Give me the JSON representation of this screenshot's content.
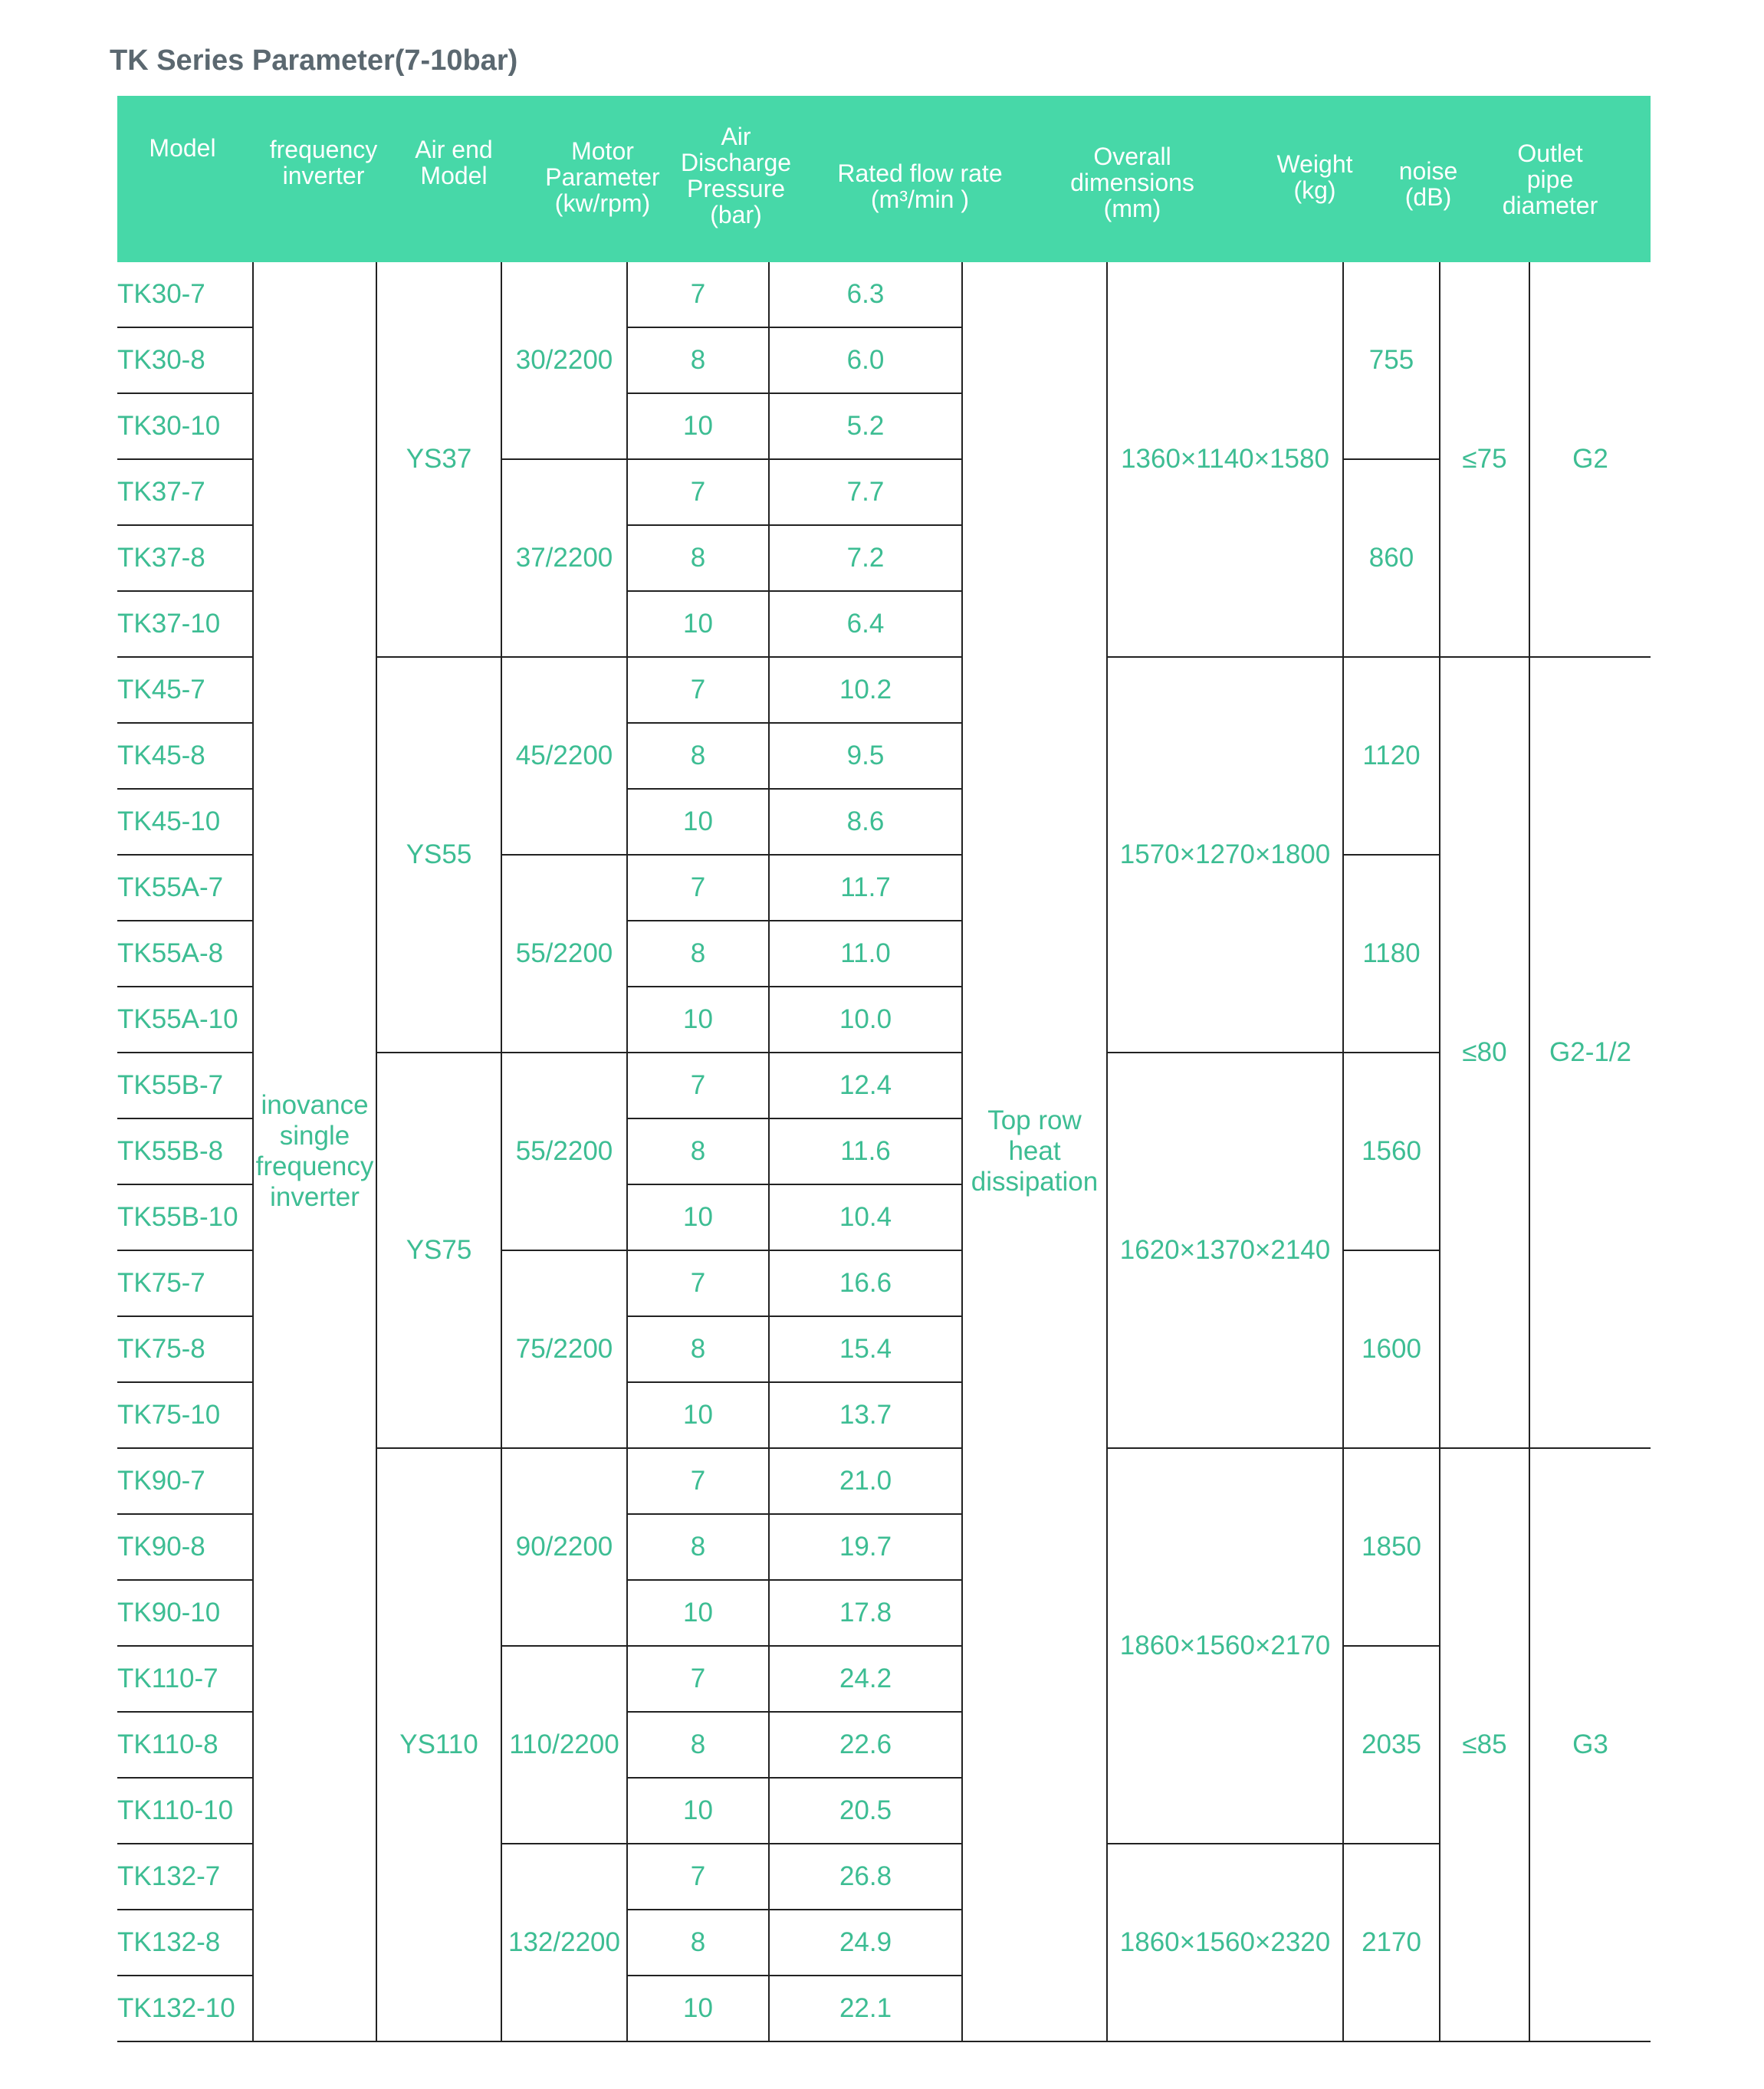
{
  "title": "TK Series Parameter(7-10bar)",
  "colors": {
    "header_bg": "#47d8a8",
    "cell_text": "#3dbd93",
    "title_text": "#5b6870"
  },
  "headers": [
    "Model",
    "frequency\ninverter",
    "Air end\nModel",
    "Motor\nParameter\n(kw/rpm)",
    "Air\nDischarge\nPressure\n(bar)",
    "Rated flow rate\n(m³/min )",
    "Overall\ndimensions\n(mm)",
    "Weight\n(kg)",
    "noise\n(dB)",
    "Outlet\npipe\ndiameter"
  ],
  "rows": [
    {
      "model": "TK30-7",
      "pressure": "7",
      "flow": "6.3"
    },
    {
      "model": "TK30-8",
      "pressure": "8",
      "flow": "6.0"
    },
    {
      "model": "TK30-10",
      "pressure": "10",
      "flow": "5.2"
    },
    {
      "model": "TK37-7",
      "pressure": "7",
      "flow": "7.7"
    },
    {
      "model": "TK37-8",
      "pressure": "8",
      "flow": "7.2"
    },
    {
      "model": "TK37-10",
      "pressure": "10",
      "flow": "6.4"
    },
    {
      "model": "TK45-7",
      "pressure": "7",
      "flow": "10.2"
    },
    {
      "model": "TK45-8",
      "pressure": "8",
      "flow": "9.5"
    },
    {
      "model": "TK45-10",
      "pressure": "10",
      "flow": "8.6"
    },
    {
      "model": "TK55A-7",
      "pressure": "7",
      "flow": "11.7"
    },
    {
      "model": "TK55A-8",
      "pressure": "8",
      "flow": "11.0"
    },
    {
      "model": "TK55A-10",
      "pressure": "10",
      "flow": "10.0"
    },
    {
      "model": "TK55B-7",
      "pressure": "7",
      "flow": "12.4"
    },
    {
      "model": "TK55B-8",
      "pressure": "8",
      "flow": "11.6"
    },
    {
      "model": "TK55B-10",
      "pressure": "10",
      "flow": "10.4"
    },
    {
      "model": "TK75-7",
      "pressure": "7",
      "flow": "16.6"
    },
    {
      "model": "TK75-8",
      "pressure": "8",
      "flow": "15.4"
    },
    {
      "model": "TK75-10",
      "pressure": "10",
      "flow": "13.7"
    },
    {
      "model": "TK90-7",
      "pressure": "7",
      "flow": "21.0"
    },
    {
      "model": "TK90-8",
      "pressure": "8",
      "flow": "19.7"
    },
    {
      "model": "TK90-10",
      "pressure": "10",
      "flow": "17.8"
    },
    {
      "model": "TK110-7",
      "pressure": "7",
      "flow": "24.2"
    },
    {
      "model": "TK110-8",
      "pressure": "8",
      "flow": "22.6"
    },
    {
      "model": "TK110-10",
      "pressure": "10",
      "flow": "20.5"
    },
    {
      "model": "TK132-7",
      "pressure": "7",
      "flow": "26.8"
    },
    {
      "model": "TK132-8",
      "pressure": "8",
      "flow": "24.9"
    },
    {
      "model": "TK132-10",
      "pressure": "10",
      "flow": "22.1"
    }
  ],
  "groups": {
    "inverter": [
      {
        "value": "inovance single frequency inverter",
        "span": 27
      }
    ],
    "airend": [
      {
        "value": "YS37",
        "span": 6
      },
      {
        "value": "YS55",
        "span": 6
      },
      {
        "value": "YS75",
        "span": 6
      },
      {
        "value": "YS110",
        "span": 9
      }
    ],
    "motor": [
      {
        "value": "30/2200",
        "span": 3
      },
      {
        "value": "37/2200",
        "span": 3
      },
      {
        "value": "45/2200",
        "span": 3
      },
      {
        "value": "55/2200",
        "span": 3
      },
      {
        "value": "55/2200",
        "span": 3
      },
      {
        "value": "75/2200",
        "span": 3
      },
      {
        "value": "90/2200",
        "span": 3
      },
      {
        "value": "110/2200",
        "span": 3
      },
      {
        "value": "132/2200",
        "span": 3
      }
    ],
    "heat": [
      {
        "value": "Top row heat dissipation",
        "span": 27
      }
    ],
    "dims": [
      {
        "value": "1360×1140×1580",
        "span": 6
      },
      {
        "value": "1570×1270×1800",
        "span": 6
      },
      {
        "value": "1620×1370×2140",
        "span": 6
      },
      {
        "value": "1860×1560×2170",
        "span": 6
      },
      {
        "value": "1860×1560×2320",
        "span": 3
      }
    ],
    "weight": [
      {
        "value": "755",
        "span": 3
      },
      {
        "value": "860",
        "span": 3
      },
      {
        "value": "1120",
        "span": 3
      },
      {
        "value": "1180",
        "span": 3
      },
      {
        "value": "1560",
        "span": 3
      },
      {
        "value": "1600",
        "span": 3
      },
      {
        "value": "1850",
        "span": 3
      },
      {
        "value": "2035",
        "span": 3
      },
      {
        "value": "2170",
        "span": 3
      }
    ],
    "noise": [
      {
        "value": "≤75",
        "span": 6
      },
      {
        "value": "≤80",
        "span": 12
      },
      {
        "value": "≤85",
        "span": 9
      }
    ],
    "outlet": [
      {
        "value": "G2",
        "span": 6
      },
      {
        "value": "G2-1/2",
        "span": 12
      },
      {
        "value": "G3",
        "span": 9
      }
    ]
  }
}
